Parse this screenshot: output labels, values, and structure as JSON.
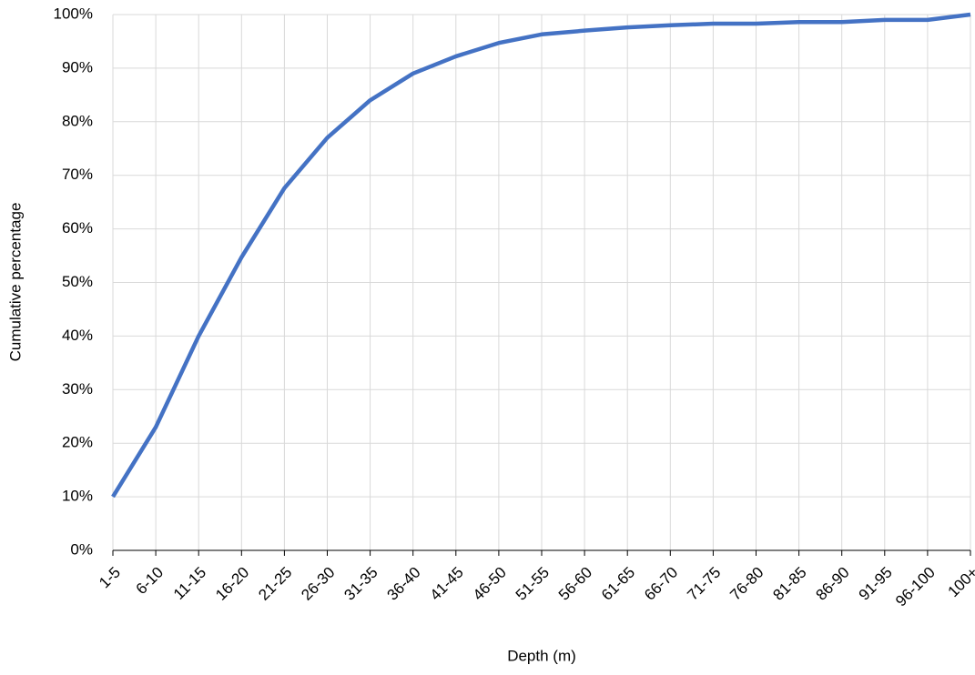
{
  "chart_data": {
    "type": "line",
    "x_label": "Depth (m)",
    "y_label": "Cumulative percentage",
    "categories": [
      "1-5",
      "6-10",
      "11-15",
      "16-20",
      "21-25",
      "26-30",
      "31-35",
      "36-40",
      "41-45",
      "46-50",
      "51-55",
      "56-60",
      "61-65",
      "66-70",
      "71-75",
      "76-80",
      "81-85",
      "86-90",
      "91-95",
      "96-100",
      "100+"
    ],
    "series": [
      {
        "color": "#4472c4",
        "values": [
          10,
          23,
          40,
          54.7,
          67.6,
          77,
          84,
          89,
          92.2,
          94.7,
          96.3,
          97,
          97.6,
          98,
          98.3,
          98.3,
          98.6,
          98.6,
          99,
          99,
          100
        ]
      }
    ],
    "ylim": [
      0,
      100
    ],
    "yticks": [
      {
        "value": 0,
        "label": "0%"
      },
      {
        "value": 10,
        "label": "10%"
      },
      {
        "value": 20,
        "label": "20%"
      },
      {
        "value": 30,
        "label": "30%"
      },
      {
        "value": 40,
        "label": "40%"
      },
      {
        "value": 50,
        "label": "50%"
      },
      {
        "value": 60,
        "label": "60%"
      },
      {
        "value": 70,
        "label": "70%"
      },
      {
        "value": 80,
        "label": "80%"
      },
      {
        "value": 90,
        "label": "90%"
      },
      {
        "value": 100,
        "label": "100%"
      }
    ],
    "grid": true
  }
}
